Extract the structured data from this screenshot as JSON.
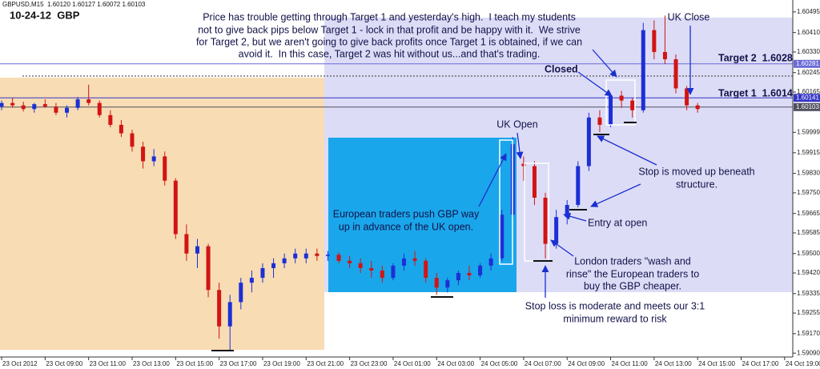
{
  "chart_data": {
    "type": "candlestick",
    "title": "10-24-12  GBP",
    "symbol_info": "GBPUSD,M15  1.60120 1.60127 1.60072 1.60103",
    "up_color": "#1c2fd6",
    "down_color": "#d21414",
    "xlim": [
      -0.15,
      72.75
    ],
    "ylim": [
      1.59074,
      1.60544
    ],
    "xticks": [
      {
        "value": 0,
        "label": "23 Oct 2012"
      },
      {
        "value": 4,
        "label": "23 Oct 09:00"
      },
      {
        "value": 8,
        "label": "23 Oct 11:00"
      },
      {
        "value": 12,
        "label": "23 Oct 13:00"
      },
      {
        "value": 16,
        "label": "23 Oct 15:00"
      },
      {
        "value": 20,
        "label": "23 Oct 17:00"
      },
      {
        "value": 24,
        "label": "23 Oct 19:00"
      },
      {
        "value": 28,
        "label": "23 Oct 21:00"
      },
      {
        "value": 32,
        "label": "23 Oct 23:00"
      },
      {
        "value": 36,
        "label": "24 Oct 01:00"
      },
      {
        "value": 40,
        "label": "24 Oct 03:00"
      },
      {
        "value": 44,
        "label": "24 Oct 05:00"
      },
      {
        "value": 48,
        "label": "24 Oct 07:00"
      },
      {
        "value": 52,
        "label": "24 Oct 09:00"
      },
      {
        "value": 56,
        "label": "24 Oct 11:00"
      },
      {
        "value": 60,
        "label": "24 Oct 13:00"
      },
      {
        "value": 64,
        "label": "24 Oct 15:00"
      },
      {
        "value": 68,
        "label": "24 Oct 17:00"
      },
      {
        "value": 72,
        "label": "24 Oct 19:00"
      }
    ],
    "yticks": [
      {
        "value": 1.60495,
        "label": "1.60495"
      },
      {
        "value": 1.6041,
        "label": "1.60410"
      },
      {
        "value": 1.6033,
        "label": "1.60330"
      },
      {
        "value": 1.60245,
        "label": "1.60245"
      },
      {
        "value": 1.60165,
        "label": "1.60165"
      },
      {
        "value": 1.59999,
        "label": "1.59999"
      },
      {
        "value": 1.59915,
        "label": "1.59915"
      },
      {
        "value": 1.5983,
        "label": "1.59830"
      },
      {
        "value": 1.5975,
        "label": "1.59750"
      },
      {
        "value": 1.59665,
        "label": "1.59665"
      },
      {
        "value": 1.59585,
        "label": "1.59585"
      },
      {
        "value": 1.595,
        "label": "1.59500"
      },
      {
        "value": 1.5942,
        "label": "1.59420"
      },
      {
        "value": 1.59335,
        "label": "1.59335"
      },
      {
        "value": 1.59255,
        "label": "1.59255"
      },
      {
        "value": 1.5917,
        "label": "1.59170"
      },
      {
        "value": 1.5909,
        "label": "1.59090"
      }
    ],
    "price_lines": [
      {
        "value": 1.60281,
        "label": "1.60281",
        "color": "#6a6ad8"
      },
      {
        "value": 1.60141,
        "label": "1.60141",
        "color": "#3434c8"
      },
      {
        "value": 1.60103,
        "label": "1.60103",
        "color": "#505060"
      }
    ],
    "open": [
      1.60105,
      1.6012,
      1.6011,
      1.60095,
      1.60115,
      1.60105,
      1.6008,
      1.601,
      1.60135,
      1.6012,
      1.6007,
      1.6003,
      1.59995,
      1.5994,
      1.5988,
      1.599,
      1.598,
      1.5958,
      1.595,
      1.5953,
      1.5935,
      1.592,
      1.593,
      1.5938,
      1.594,
      1.5944,
      1.5946,
      1.5948,
      1.5948,
      1.595,
      1.5949,
      1.59495,
      1.5947,
      1.5946,
      1.5944,
      1.5943,
      1.594,
      1.5945,
      1.5948,
      1.5947,
      1.594,
      1.5936,
      1.5939,
      1.5942,
      1.5941,
      1.5945,
      1.5948,
      1.5966,
      1.5987,
      1.5986,
      1.5973,
      1.5954,
      1.5965,
      1.597,
      1.5986,
      1.6006,
      1.6003,
      1.6015,
      1.6013,
      1.6009,
      1.6042,
      1.6033,
      1.603,
      1.6018,
      1.6011
    ],
    "high": [
      1.6013,
      1.6014,
      1.60125,
      1.6012,
      1.60135,
      1.6012,
      1.6011,
      1.60145,
      1.60195,
      1.6013,
      1.6009,
      1.6005,
      1.6001,
      1.5996,
      1.5993,
      1.5992,
      1.5981,
      1.5962,
      1.5956,
      1.5954,
      1.5938,
      1.5933,
      1.594,
      1.5943,
      1.5946,
      1.5948,
      1.595,
      1.5952,
      1.5952,
      1.5952,
      1.5951,
      1.59505,
      1.5949,
      1.5948,
      1.5947,
      1.5945,
      1.5946,
      1.595,
      1.5951,
      1.5948,
      1.5942,
      1.594,
      1.5943,
      1.5945,
      1.5946,
      1.595,
      1.5968,
      1.5998,
      1.599,
      1.5988,
      1.5975,
      1.5968,
      1.5972,
      1.5988,
      1.6008,
      1.6009,
      1.6016,
      1.6017,
      1.6014,
      1.6045,
      1.6046,
      1.6048,
      1.6032,
      1.6019,
      1.6012
    ],
    "low": [
      1.6009,
      1.601,
      1.60085,
      1.6008,
      1.601,
      1.6007,
      1.6006,
      1.6009,
      1.6011,
      1.6006,
      1.6002,
      1.5998,
      1.5992,
      1.5985,
      1.5986,
      1.5978,
      1.5956,
      1.5947,
      1.5944,
      1.5932,
      1.5915,
      1.591,
      1.5927,
      1.5934,
      1.5938,
      1.594,
      1.5944,
      1.5946,
      1.5946,
      1.5947,
      1.5947,
      1.5946,
      1.5944,
      1.5942,
      1.594,
      1.5938,
      1.5939,
      1.5943,
      1.5945,
      1.5938,
      1.5933,
      1.5934,
      1.5937,
      1.5939,
      1.594,
      1.5943,
      1.5947,
      1.5964,
      1.598,
      1.597,
      1.5948,
      1.5952,
      1.5962,
      1.5969,
      1.5984,
      1.6,
      1.6002,
      1.601,
      1.6006,
      1.6008,
      1.603,
      1.6028,
      1.6016,
      1.6009,
      1.6008
    ],
    "close": [
      1.6012,
      1.6011,
      1.60095,
      1.60115,
      1.60105,
      1.6008,
      1.601,
      1.60135,
      1.6012,
      1.6007,
      1.6003,
      1.59995,
      1.5994,
      1.5988,
      1.599,
      1.598,
      1.5958,
      1.595,
      1.5953,
      1.5935,
      1.592,
      1.593,
      1.5938,
      1.594,
      1.5944,
      1.5946,
      1.5948,
      1.595,
      1.595,
      1.5949,
      1.59495,
      1.5947,
      1.5946,
      1.5944,
      1.5943,
      1.594,
      1.5945,
      1.5948,
      1.5947,
      1.594,
      1.5936,
      1.5939,
      1.5942,
      1.5941,
      1.5945,
      1.5948,
      1.5966,
      1.5995,
      1.5986,
      1.5973,
      1.5954,
      1.5965,
      1.597,
      1.5986,
      1.6006,
      1.6003,
      1.6015,
      1.6013,
      1.6009,
      1.6042,
      1.6033,
      1.603,
      1.6018,
      1.6011,
      1.60095
    ],
    "annotations": {
      "note": [
        "Price has trouble getting through Target 1 and yesterday's high.  I teach my students",
        "not to give back pips below Target 1 - lock in that profit and be happy with it.  We strive",
        "for Target 2, but we aren't going to give back profits once Target 1 is obtained, if we can",
        "avoid it.  In this case, Target 2 was hit without us...and that's trading."
      ],
      "uk_close": "UK Close",
      "target2": "Target 2  1.6028",
      "closed": "Closed",
      "target1": "Target 1  1.6014",
      "uk_open": "UK Open",
      "stop_moved": [
        "Stop is moved up beneath",
        "structure."
      ],
      "european": [
        "European traders push GBP way",
        "up in advance of the UK open."
      ],
      "entry": "Entry at open",
      "london": [
        "London traders \"wash and",
        "rinse\" the European traders to",
        "buy the GBP cheaper."
      ],
      "stop_loss": [
        "Stop loss is moderate and meets our 3:1",
        "minimum reward to risk"
      ]
    }
  }
}
